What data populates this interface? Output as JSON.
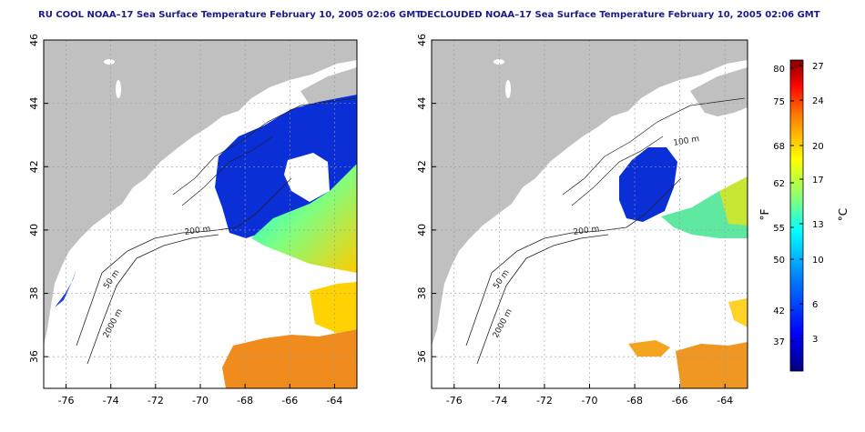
{
  "panels": [
    {
      "title": "RU COOL NOAA–17 Sea Surface Temperature February 10, 2005 02:06 GMT",
      "xticks": [
        "-76",
        "-74",
        "-72",
        "-70",
        "-68",
        "-66",
        "-64"
      ],
      "yticks": [
        "36",
        "38",
        "40",
        "42",
        "44",
        "46"
      ],
      "contours": {
        "c200": "200 m",
        "c50": "50 m",
        "c2000": "2000 m"
      }
    },
    {
      "title": "DECLOUDED NOAA–17 Sea Surface Temperature February 10, 2005 02:06 GMT",
      "xticks": [
        "-76",
        "-74",
        "-72",
        "-70",
        "-68",
        "-66",
        "-64"
      ],
      "yticks": [
        "36",
        "38",
        "40",
        "42",
        "44",
        "46"
      ],
      "contours": {
        "c200": "200 m",
        "c50": "50 m",
        "c2000": "2000 m",
        "c100": "100 m"
      }
    }
  ],
  "colorbar": {
    "f_label": "°F",
    "c_label": "°C",
    "f_ticks": [
      "80",
      "75",
      "68",
      "62",
      "55",
      "50",
      "42",
      "37"
    ],
    "c_ticks": [
      "27",
      "24",
      "20",
      "17",
      "13",
      "10",
      "6",
      "3"
    ],
    "colors": [
      "#00007f",
      "#0000ff",
      "#007fff",
      "#00ffff",
      "#7fff7f",
      "#ffff00",
      "#ff7f00",
      "#ff0000",
      "#7f0000"
    ]
  },
  "colors": {
    "land": "#c0c0c0",
    "ocean": "#ffffff",
    "grid": "#9a9a9a",
    "title": "#1a1a8c"
  }
}
